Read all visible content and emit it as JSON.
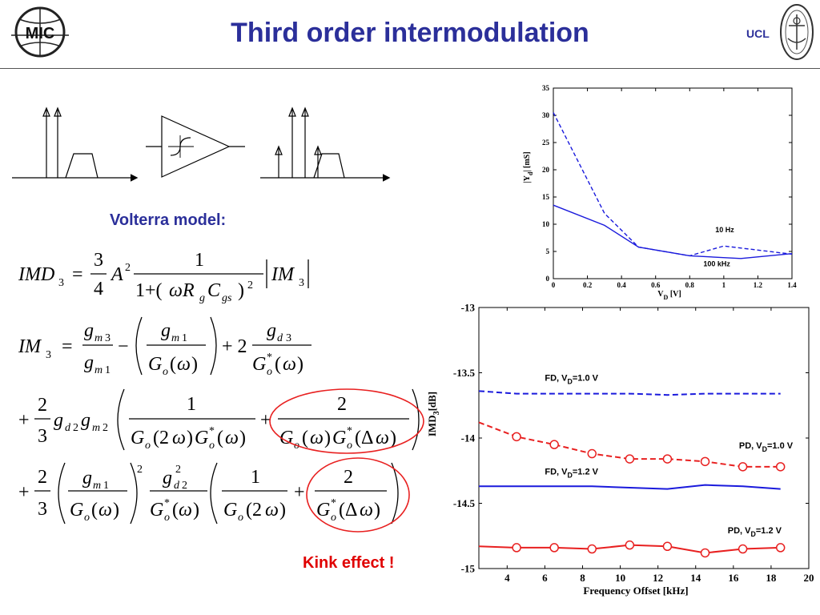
{
  "header": {
    "title": "Third order intermodulation",
    "right_label": "UCL",
    "logo_left_text": "MIC"
  },
  "body": {
    "section_label": "Volterra model:",
    "annotation": "Kink effect !"
  },
  "equations": {
    "imd3_lhs": "IMD",
    "imd3_sub": "3",
    "im3_lhs": "IM",
    "im3_sub": "3"
  },
  "chart_data": [
    {
      "type": "line",
      "xlabel": "V_D [V]",
      "ylabel": "|Y_d| [mS]",
      "xlim": [
        0,
        1.4
      ],
      "ylim": [
        0,
        35
      ],
      "xticks": [
        "0",
        "0.2",
        "0.4",
        "0.6",
        "0.8",
        "1",
        "1.2",
        "1.4"
      ],
      "yticks": [
        "0",
        "5",
        "10",
        "15",
        "20",
        "25",
        "30",
        "35"
      ],
      "series": [
        {
          "name": "10 Hz",
          "style": "dashed",
          "color": "#1a1adc",
          "x": [
            0,
            0.3,
            0.5,
            0.8,
            1.0,
            1.4
          ],
          "y": [
            30.5,
            12,
            5.8,
            4.2,
            6,
            4.5
          ]
        },
        {
          "name": "100 kHz",
          "style": "solid",
          "color": "#1a1adc",
          "x": [
            0,
            0.3,
            0.5,
            0.8,
            1.1,
            1.4
          ],
          "y": [
            13.5,
            9.8,
            5.8,
            4.2,
            3.7,
            4.6
          ]
        }
      ]
    },
    {
      "type": "line",
      "xlabel": "Frequency Offset [kHz]",
      "ylabel": "IMD3[dB]",
      "xlim": [
        2.5,
        20
      ],
      "ylim": [
        -15,
        -13
      ],
      "xticks": [
        "4",
        "6",
        "8",
        "10",
        "12",
        "14",
        "16",
        "18",
        "20"
      ],
      "yticks": [
        "-13",
        "-13.5",
        "-14",
        "-14.5",
        "-15"
      ],
      "series": [
        {
          "name": "FD, V_D=1.0 V",
          "style": "dashed",
          "color": "#1a1adc",
          "markers": false,
          "x": [
            2.5,
            4.5,
            6.5,
            8.5,
            10.5,
            12.5,
            14.5,
            16.5,
            18.5
          ],
          "y": [
            -13.64,
            -13.66,
            -13.66,
            -13.66,
            -13.66,
            -13.67,
            -13.66,
            -13.66,
            -13.66
          ]
        },
        {
          "name": "PD, V_D=1.0 V",
          "style": "dashed",
          "color": "#e82020",
          "markers": true,
          "x": [
            2.5,
            4.5,
            6.5,
            8.5,
            10.5,
            12.5,
            14.5,
            16.5,
            18.5
          ],
          "y": [
            -13.88,
            -13.99,
            -14.05,
            -14.12,
            -14.16,
            -14.16,
            -14.18,
            -14.22,
            -14.22
          ]
        },
        {
          "name": "FD, V_D=1.2 V",
          "style": "solid",
          "color": "#1a1adc",
          "markers": false,
          "x": [
            2.5,
            4.5,
            6.5,
            8.5,
            10.5,
            12.5,
            14.5,
            16.5,
            18.5
          ],
          "y": [
            -14.37,
            -14.37,
            -14.37,
            -14.37,
            -14.38,
            -14.39,
            -14.36,
            -14.37,
            -14.39
          ]
        },
        {
          "name": "PD, V_D=1.2 V",
          "style": "solid",
          "color": "#e82020",
          "markers": true,
          "x": [
            2.5,
            4.5,
            6.5,
            8.5,
            10.5,
            12.5,
            14.5,
            16.5,
            18.5
          ],
          "y": [
            -14.83,
            -14.84,
            -14.84,
            -14.85,
            -14.82,
            -14.83,
            -14.88,
            -14.85,
            -14.84
          ]
        }
      ]
    }
  ]
}
